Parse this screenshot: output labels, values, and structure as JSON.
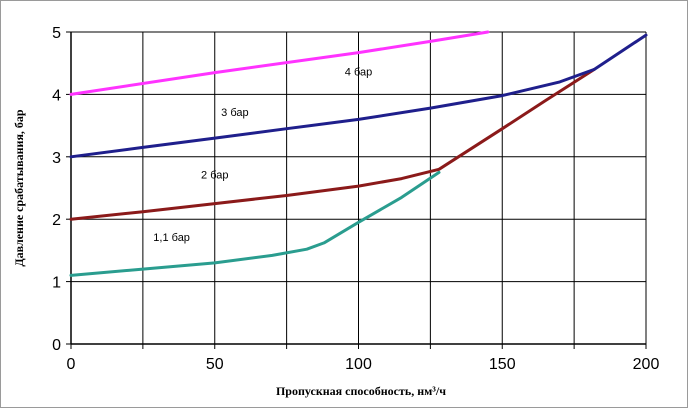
{
  "chart_data": {
    "type": "line",
    "xlabel": "Пропускная способность, нм³/ч",
    "ylabel": "Давление срабатывания, бар",
    "xlim": [
      0,
      200
    ],
    "ylim": [
      0,
      5
    ],
    "xticks": [
      0,
      50,
      100,
      150,
      200
    ],
    "yticks": [
      0,
      1,
      2,
      3,
      4,
      5
    ],
    "grid": true,
    "x_minor_gridlines": [
      25,
      75,
      125,
      175
    ],
    "series": [
      {
        "name": "1,1 бар",
        "color": "#2a9d8f",
        "x": [
          0,
          25,
          50,
          70,
          82,
          88,
          100,
          115,
          128
        ],
        "y": [
          1.1,
          1.2,
          1.3,
          1.42,
          1.52,
          1.62,
          1.95,
          2.35,
          2.75
        ]
      },
      {
        "name": "2 бар",
        "color": "#8b1a1a",
        "x": [
          0,
          25,
          50,
          75,
          100,
          115,
          128,
          150,
          165,
          182
        ],
        "y": [
          2.0,
          2.12,
          2.25,
          2.38,
          2.53,
          2.65,
          2.8,
          3.45,
          3.9,
          4.4
        ]
      },
      {
        "name": "3 бар",
        "color": "#1f1f8c",
        "x": [
          0,
          25,
          50,
          75,
          100,
          125,
          150,
          170,
          182,
          200
        ],
        "y": [
          3.0,
          3.15,
          3.3,
          3.45,
          3.6,
          3.78,
          3.98,
          4.2,
          4.4,
          4.95
        ]
      },
      {
        "name": "4 бар",
        "color": "#ff33ff",
        "x": [
          0,
          50,
          100,
          125,
          145
        ],
        "y": [
          4.0,
          4.35,
          4.67,
          4.85,
          5.0
        ]
      }
    ],
    "annotations": [
      {
        "text": "4 бар",
        "x": 100,
        "y": 4.3
      },
      {
        "text": "3 бар",
        "x": 57,
        "y": 3.65
      },
      {
        "text": "2 бар",
        "x": 50,
        "y": 2.65
      },
      {
        "text": "1,1 бар",
        "x": 35,
        "y": 1.65
      }
    ]
  }
}
